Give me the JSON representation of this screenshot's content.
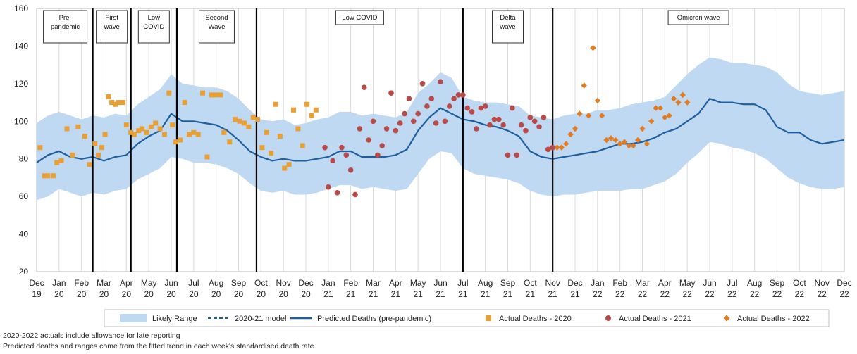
{
  "chart_data": {
    "type": "line",
    "ylim": [
      20,
      160
    ],
    "yticks": [
      20,
      40,
      60,
      80,
      100,
      120,
      140,
      160
    ],
    "x_tick_labels": [
      [
        "Dec",
        "19"
      ],
      [
        "Jan",
        "20"
      ],
      [
        "Feb",
        "20"
      ],
      [
        "Mar",
        "20"
      ],
      [
        "Apr",
        "20"
      ],
      [
        "May",
        "20"
      ],
      [
        "Jun",
        "20"
      ],
      [
        "Jul",
        "20"
      ],
      [
        "Aug",
        "20"
      ],
      [
        "Sep",
        "20"
      ],
      [
        "Oct",
        "20"
      ],
      [
        "Nov",
        "20"
      ],
      [
        "Dec",
        "20"
      ],
      [
        "Jan",
        "21"
      ],
      [
        "Feb",
        "21"
      ],
      [
        "Mar",
        "21"
      ],
      [
        "Apr",
        "21"
      ],
      [
        "May",
        "21"
      ],
      [
        "Jun",
        "21"
      ],
      [
        "Jul",
        "21"
      ],
      [
        "Aug",
        "21"
      ],
      [
        "Sep",
        "21"
      ],
      [
        "Oct",
        "21"
      ],
      [
        "Nov",
        "21"
      ],
      [
        "Dec",
        "21"
      ],
      [
        "Jan",
        "22"
      ],
      [
        "Feb",
        "22"
      ],
      [
        "Mar",
        "22"
      ],
      [
        "Apr",
        "22"
      ],
      [
        "May",
        "22"
      ],
      [
        "Jun",
        "22"
      ],
      [
        "Jul",
        "22"
      ],
      [
        "Aug",
        "22"
      ],
      [
        "Sep",
        "22"
      ],
      [
        "Oct",
        "22"
      ],
      [
        "Nov",
        "22"
      ],
      [
        "Dec",
        "22"
      ]
    ],
    "grid": "vertical",
    "phases": [
      {
        "label": [
          "Pre-",
          "pandemic"
        ],
        "start": 0.05,
        "end": 2.5
      },
      {
        "label": [
          "First",
          "wave"
        ],
        "start": 2.5,
        "end": 4.2
      },
      {
        "label": [
          "Low",
          "COVID"
        ],
        "start": 4.2,
        "end": 6.25
      },
      {
        "label": [
          "Second",
          "Wave"
        ],
        "start": 6.25,
        "end": 9.8
      },
      {
        "label": [
          "Low COVID"
        ],
        "start": 9.8,
        "end": 19.0
      },
      {
        "label": [
          "Delta",
          "wave"
        ],
        "start": 19.0,
        "end": 23.0
      },
      {
        "label": [
          "Omicron wave"
        ],
        "start": 23.0,
        "end": 36.0
      }
    ],
    "phase_dividers": [
      2.5,
      4.2,
      6.25,
      9.8,
      19.0,
      23.0
    ],
    "likely_range": {
      "x": [
        0,
        0.5,
        1,
        1.5,
        2,
        2.5,
        3,
        3.5,
        4,
        4.5,
        5,
        5.5,
        6,
        6.5,
        7,
        7.5,
        8,
        8.5,
        9,
        9.5,
        10,
        10.5,
        11,
        11.5,
        12,
        12.5,
        13,
        13.5,
        14,
        14.5,
        15,
        15.5,
        16,
        16.5,
        17,
        17.5,
        18,
        18.5,
        19,
        19.5,
        20,
        20.5,
        21,
        21.5,
        22,
        22.5,
        23,
        23.5,
        24,
        24.5,
        25,
        25.5,
        26,
        26.5,
        27,
        27.5,
        28,
        28.5,
        29,
        29.5,
        30,
        30.5,
        31,
        31.5,
        32,
        32.5,
        33,
        33.5,
        34,
        34.5,
        35,
        35.5,
        36
      ],
      "upper": [
        99,
        103,
        105,
        103,
        101,
        103,
        102,
        104,
        103,
        109,
        113,
        117,
        125,
        120,
        119,
        118,
        118,
        116,
        112,
        106,
        101,
        100,
        101,
        98,
        99,
        101,
        102,
        105,
        105,
        103,
        104,
        103,
        102,
        105,
        115,
        120,
        126,
        123,
        113,
        111,
        110,
        110,
        109,
        108,
        103,
        102,
        101,
        103,
        104,
        104,
        106,
        106,
        107,
        109,
        110,
        111,
        113,
        119,
        125,
        130,
        134,
        133,
        131,
        131,
        130,
        129,
        126,
        120,
        116,
        115,
        114,
        115,
        116
      ],
      "lower": [
        58,
        60,
        64,
        62,
        60,
        62,
        61,
        63,
        64,
        69,
        72,
        75,
        81,
        80,
        78,
        78,
        77,
        75,
        72,
        67,
        63,
        62,
        63,
        61,
        61,
        62,
        64,
        66,
        66,
        64,
        65,
        64,
        63,
        64,
        72,
        80,
        84,
        83,
        75,
        72,
        71,
        70,
        69,
        67,
        63,
        61,
        60,
        61,
        61,
        62,
        63,
        63,
        63,
        64,
        64,
        66,
        68,
        72,
        78,
        83,
        89,
        88,
        86,
        85,
        83,
        80,
        75,
        70,
        67,
        65,
        64,
        64,
        65
      ]
    },
    "series": [
      {
        "name": "Predicted Deaths (pre-pandemic)",
        "x": [
          0,
          0.5,
          1,
          1.5,
          2,
          2.5,
          3,
          3.5,
          4,
          4.5,
          5,
          5.5,
          6,
          6.5,
          7,
          7.5,
          8,
          8.5,
          9,
          9.5,
          10,
          10.5,
          11,
          11.5,
          12,
          12.5,
          13,
          13.5,
          14,
          14.5,
          15,
          15.5,
          16,
          16.5,
          17,
          17.5,
          18,
          18.5,
          19,
          19.5,
          20,
          20.5,
          21,
          21.5,
          22,
          22.5,
          23,
          23.5,
          24,
          24.5,
          25,
          25.5,
          26,
          26.5,
          27,
          27.5,
          28,
          28.5,
          29,
          29.5,
          30,
          30.5,
          31,
          31.5,
          32,
          32.5,
          33,
          33.5,
          34,
          34.5,
          35,
          35.5,
          36
        ],
        "values": [
          78,
          82,
          84,
          81,
          80,
          81,
          79,
          81,
          82,
          88,
          92,
          95,
          104,
          100,
          100,
          99,
          98,
          95,
          90,
          84,
          81,
          79,
          80,
          79,
          79,
          80,
          81,
          84,
          84,
          81,
          81,
          81,
          82,
          85,
          95,
          102,
          107,
          104,
          101,
          100,
          98,
          97,
          95,
          92,
          84,
          81,
          80,
          81,
          82,
          83,
          84,
          86,
          88,
          88,
          89,
          91,
          94,
          96,
          100,
          104,
          112,
          110,
          110,
          109,
          109,
          106,
          97,
          94,
          94,
          90,
          88,
          89,
          90
        ]
      },
      {
        "name": "Actual Deaths - 2020",
        "x": [
          0.15,
          0.35,
          0.5,
          0.75,
          0.9,
          1.1,
          1.35,
          1.6,
          1.85,
          2.15,
          2.35,
          2.6,
          2.75,
          2.9,
          3.05,
          3.2,
          3.35,
          3.5,
          3.65,
          3.85,
          4.0,
          4.2,
          4.35,
          4.55,
          4.7,
          4.9,
          5.1,
          5.3,
          5.5,
          5.7,
          5.9,
          6.05,
          6.2,
          6.4,
          6.6,
          6.8,
          7.0,
          7.2,
          7.4,
          7.6,
          7.8,
          8.0,
          8.2,
          8.35,
          8.6,
          8.85,
          9.05,
          9.25,
          9.45,
          9.65,
          9.85,
          10.05,
          10.25,
          10.45,
          10.65,
          10.85,
          11.05,
          11.25,
          11.45,
          11.65,
          11.85,
          12.05,
          12.25,
          12.45
        ],
        "values": [
          86,
          71,
          71,
          71,
          78,
          79,
          96,
          82,
          97,
          92,
          77,
          88,
          82,
          86,
          93,
          113,
          110,
          109,
          110,
          110,
          98,
          94,
          93,
          95,
          96,
          94,
          97,
          99,
          96,
          93,
          115,
          98,
          89,
          90,
          110,
          93,
          94,
          93,
          115,
          81,
          114,
          114,
          114,
          94,
          89,
          101,
          100,
          99,
          97,
          102,
          101,
          86,
          94,
          83,
          109,
          92,
          75,
          77,
          106,
          96,
          87,
          109,
          103,
          106
        ]
      },
      {
        "name": "Actual Deaths - 2021",
        "x": [
          12.85,
          13.0,
          13.2,
          13.4,
          13.6,
          13.8,
          14.0,
          14.2,
          14.4,
          14.6,
          14.8,
          15.0,
          15.2,
          15.4,
          15.6,
          15.8,
          16.0,
          16.2,
          16.4,
          16.6,
          16.8,
          17.0,
          17.2,
          17.4,
          17.6,
          17.8,
          18.0,
          18.2,
          18.4,
          18.6,
          18.8,
          19.0,
          19.2,
          19.4,
          19.6,
          19.8,
          20.0,
          20.2,
          20.4,
          20.6,
          20.8,
          21.0,
          21.2,
          21.4,
          21.6,
          21.8,
          22.0,
          22.2,
          22.4,
          22.6,
          22.8,
          23.0
        ],
        "values": [
          86,
          65,
          79,
          62,
          86,
          82,
          74,
          61,
          96,
          118,
          90,
          100,
          82,
          87,
          96,
          115,
          95,
          99,
          104,
          112,
          100,
          104,
          120,
          108,
          112,
          99,
          121,
          100,
          108,
          112,
          114,
          114,
          107,
          105,
          96,
          107,
          108,
          98,
          101,
          101,
          98,
          82,
          107,
          82,
          98,
          95,
          102,
          100,
          97,
          102,
          85,
          86
        ]
      },
      {
        "name": "Actual Deaths - 2022",
        "x": [
          23.2,
          23.4,
          23.6,
          23.8,
          24.0,
          24.2,
          24.4,
          24.6,
          24.8,
          25.0,
          25.2,
          25.4,
          25.6,
          25.8,
          26.0,
          26.2,
          26.4,
          26.6,
          26.8,
          27.0,
          27.2,
          27.4,
          27.6,
          27.8,
          28.0,
          28.2,
          28.4,
          28.6,
          28.8,
          29.0
        ],
        "values": [
          86,
          86,
          88,
          93,
          96,
          104,
          119,
          103,
          139,
          111,
          103,
          90,
          91,
          90,
          88,
          89,
          87,
          87,
          90,
          96,
          88,
          100,
          107,
          107,
          102,
          103,
          112,
          110,
          114,
          110
        ]
      }
    ],
    "legend": {
      "position": "bottom",
      "entries": [
        {
          "label": "Likely Range",
          "kind": "band"
        },
        {
          "label": "2020-21 model",
          "kind": "dashed"
        },
        {
          "label": "Predicted Deaths (pre-pandemic)",
          "kind": "line"
        },
        {
          "label": "Actual Deaths - 2020",
          "kind": "square"
        },
        {
          "label": "Actual Deaths - 2021",
          "kind": "circle"
        },
        {
          "label": "Actual Deaths - 2022",
          "kind": "diamond"
        }
      ]
    },
    "colors": {
      "band": "#bfd9f2",
      "line": "#1f5f9e",
      "y2020": "#e8a036",
      "y2021": "#b84a4a",
      "y2022": "#e07c24",
      "grid": "#d9d9d9",
      "divider": "#000000"
    }
  },
  "footnotes": [
    "2020-2022 actuals include allowance for late reporting",
    "Predicted deaths and ranges come from the fitted trend in each week's standardised death rate"
  ]
}
